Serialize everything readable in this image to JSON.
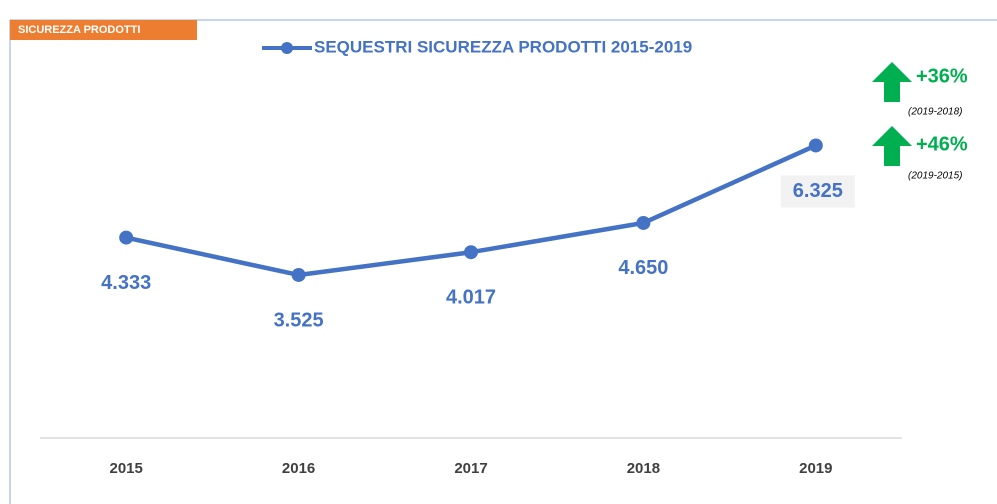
{
  "chart_data": {
    "type": "line",
    "categories": [
      "2015",
      "2016",
      "2017",
      "2018",
      "2019"
    ],
    "series": [
      {
        "name": "SEQUESTRI SICUREZZA PRODOTTI 2015-2019",
        "color": "#4472c4",
        "values": [
          4333,
          3525,
          4017,
          4650,
          6325
        ],
        "value_labels": [
          "4.333",
          "3.525",
          "4.017",
          "4.650",
          "6.325"
        ]
      }
    ],
    "ylim": [
      0,
      8000
    ],
    "annotations": [
      "SICUREZZA PRODOTTI",
      "+36%",
      "(2019-2018)",
      "+46%",
      "(2019-2015)"
    ],
    "annotation_color": "#00b050",
    "legend": "top"
  }
}
